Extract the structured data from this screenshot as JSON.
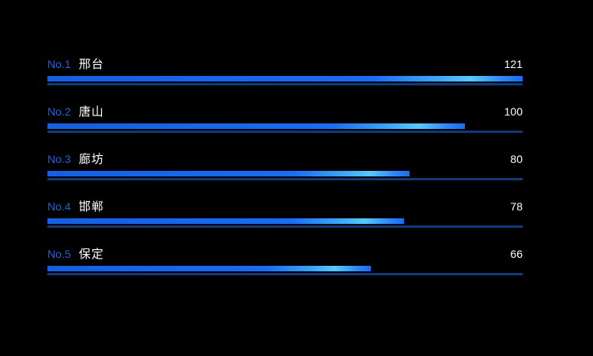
{
  "app": {
    "background": "#000000"
  },
  "chart_data": {
    "type": "bar",
    "orientation": "horizontal",
    "title": "",
    "xlabel": "",
    "ylabel": "",
    "legend": false,
    "grid": false,
    "categories": [
      "邢台",
      "唐山",
      "廊坊",
      "邯郸",
      "保定"
    ],
    "values": [
      121,
      100,
      80,
      78,
      66
    ],
    "ranks": [
      "No.1",
      "No.2",
      "No.3",
      "No.4",
      "No.5"
    ],
    "bar_fill_percents": [
      100,
      87.9,
      76.2,
      75.0,
      68.1
    ],
    "colors": {
      "background": "#000000",
      "rank_text": "#1e63db",
      "category_text": "#ffffff",
      "value_text": "#ffffff",
      "bar_main": "#1a6cf3",
      "bar_highlight": "#55caff",
      "track_line": "#123a78"
    }
  },
  "rows": [
    {
      "rank": "No.1",
      "name": "邢台",
      "value": "121",
      "percent": 100
    },
    {
      "rank": "No.2",
      "name": "唐山",
      "value": "100",
      "percent": 87.9
    },
    {
      "rank": "No.3",
      "name": "廊坊",
      "value": "80",
      "percent": 76.2
    },
    {
      "rank": "No.4",
      "name": "邯郸",
      "value": "78",
      "percent": 75.0
    },
    {
      "rank": "No.5",
      "name": "保定",
      "value": "66",
      "percent": 68.1
    }
  ]
}
